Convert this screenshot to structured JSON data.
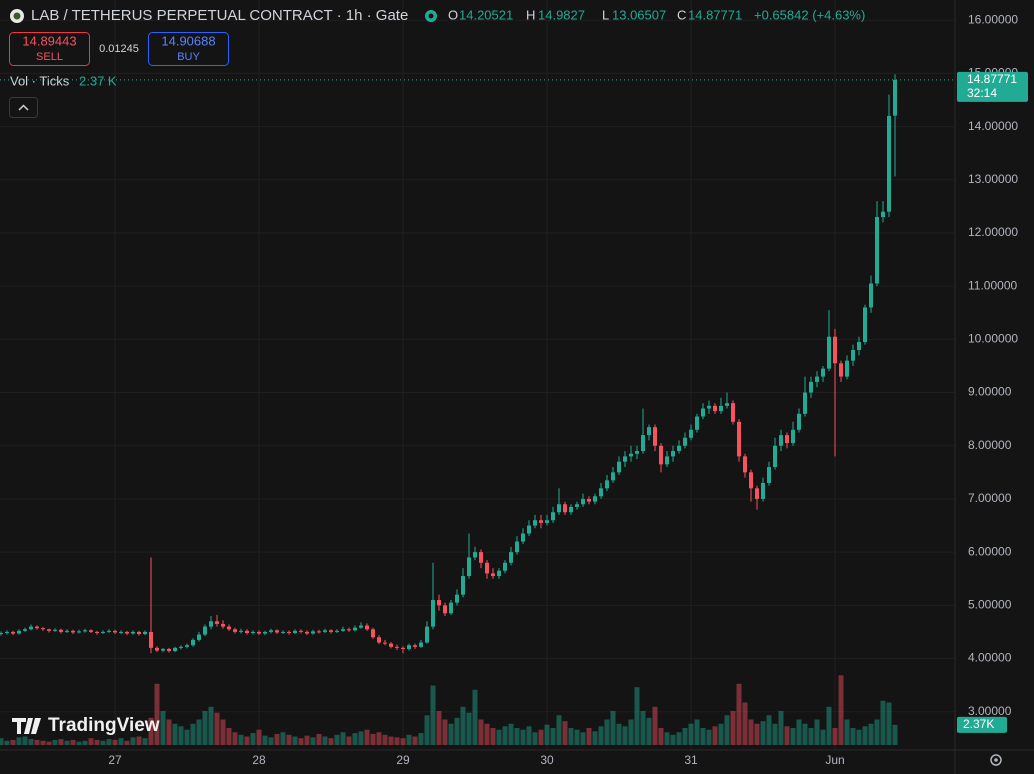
{
  "header": {
    "title": "LAB / TETHERUS PERPETUAL CONTRACT · 1h · Gate",
    "ohlc_labels": [
      "O",
      "H",
      "L",
      "C"
    ],
    "change_label": "+0.65842 (+4.63%)"
  },
  "trade": {
    "sell_price": "14.89443",
    "sell_label": "SELL",
    "spread": "0.01245",
    "buy_price": "14.90688",
    "buy_label": "BUY"
  },
  "volume_legend": {
    "label": "Vol · Ticks",
    "value_label": "2.37 K",
    "axis_label": "2.37K"
  },
  "countdown": "32:14",
  "branding": "TradingView",
  "chart_data": {
    "type": "candlestick",
    "up_color": "#22ab94",
    "down_color": "#f7525f",
    "grid": true,
    "ylim": [
      2.28,
      16.38
    ],
    "yticks": [
      {
        "value": 3,
        "label": "3.00000"
      },
      {
        "value": 4,
        "label": "4.00000"
      },
      {
        "value": 5,
        "label": "5.00000"
      },
      {
        "value": 6,
        "label": "6.00000"
      },
      {
        "value": 7,
        "label": "7.00000"
      },
      {
        "value": 8,
        "label": "8.00000"
      },
      {
        "value": 9,
        "label": "9.00000"
      },
      {
        "value": 10,
        "label": "10.00000"
      },
      {
        "value": 11,
        "label": "11.00000"
      },
      {
        "value": 12,
        "label": "12.00000"
      },
      {
        "value": 13,
        "label": "13.00000"
      },
      {
        "value": 14,
        "label": "14.00000"
      },
      {
        "value": 15,
        "label": "15.00000"
      },
      {
        "value": 16,
        "label": "16.00000"
      }
    ],
    "x": [
      null,
      null,
      null,
      null,
      null,
      null,
      null,
      null,
      null,
      null,
      null,
      null,
      null,
      null,
      null,
      null,
      null,
      null,
      null,
      "27",
      null,
      null,
      null,
      null,
      null,
      null,
      null,
      null,
      null,
      null,
      null,
      null,
      null,
      null,
      null,
      null,
      null,
      null,
      null,
      null,
      null,
      null,
      null,
      "28",
      null,
      null,
      null,
      null,
      null,
      null,
      null,
      null,
      null,
      null,
      null,
      null,
      null,
      null,
      null,
      null,
      null,
      null,
      null,
      null,
      null,
      null,
      null,
      "29",
      null,
      null,
      null,
      null,
      null,
      null,
      null,
      null,
      null,
      null,
      null,
      null,
      null,
      null,
      null,
      null,
      null,
      null,
      null,
      null,
      null,
      null,
      null,
      "30",
      null,
      null,
      null,
      null,
      null,
      null,
      null,
      null,
      null,
      null,
      null,
      null,
      null,
      null,
      null,
      null,
      null,
      null,
      null,
      null,
      null,
      null,
      null,
      "31",
      null,
      null,
      null,
      null,
      null,
      null,
      null,
      null,
      null,
      null,
      null,
      null,
      null,
      null,
      null,
      null,
      null,
      null,
      null,
      null,
      null,
      null,
      null,
      "Jun",
      null,
      null,
      null,
      null,
      null,
      null,
      null,
      null,
      null,
      null
    ],
    "open": [
      4.46,
      4.48,
      4.5,
      4.47,
      4.52,
      4.55,
      4.6,
      4.57,
      4.55,
      4.52,
      4.54,
      4.5,
      4.52,
      4.49,
      4.51,
      4.53,
      4.5,
      4.48,
      4.5,
      4.52,
      4.49,
      4.5,
      4.47,
      4.5,
      4.46,
      4.5,
      4.2,
      4.15,
      4.18,
      4.14,
      4.2,
      4.22,
      4.25,
      4.35,
      4.45,
      4.6,
      4.7,
      4.65,
      4.6,
      4.55,
      4.5,
      4.52,
      4.48,
      4.5,
      4.47,
      4.5,
      4.53,
      4.49,
      4.5,
      4.48,
      4.52,
      4.5,
      4.47,
      4.51,
      4.5,
      4.53,
      4.5,
      4.52,
      4.55,
      4.53,
      4.58,
      4.62,
      4.55,
      4.4,
      4.3,
      4.28,
      4.22,
      4.2,
      4.18,
      4.25,
      4.22,
      4.3,
      4.6,
      5.1,
      5.0,
      4.85,
      5.05,
      5.2,
      5.55,
      5.9,
      6.0,
      5.8,
      5.6,
      5.55,
      5.65,
      5.8,
      6.0,
      6.2,
      6.35,
      6.5,
      6.6,
      6.55,
      6.6,
      6.75,
      6.9,
      6.75,
      6.85,
      6.9,
      7.0,
      6.95,
      7.05,
      7.2,
      7.35,
      7.5,
      7.7,
      7.8,
      7.85,
      7.9,
      8.2,
      8.35,
      8.0,
      7.65,
      7.8,
      7.9,
      8.0,
      8.15,
      8.3,
      8.55,
      8.7,
      8.75,
      8.65,
      8.75,
      8.8,
      8.45,
      7.8,
      7.5,
      7.2,
      7.0,
      7.3,
      7.6,
      8.0,
      8.2,
      8.05,
      8.3,
      8.6,
      9.0,
      9.2,
      9.3,
      9.45,
      10.05,
      9.55,
      9.3,
      9.6,
      9.8,
      9.95,
      10.6,
      11.05,
      12.3,
      12.4,
      14.20521
    ],
    "high": [
      4.51,
      4.53,
      4.52,
      4.55,
      4.58,
      4.64,
      4.62,
      4.59,
      4.56,
      4.57,
      4.56,
      4.55,
      4.54,
      4.54,
      4.56,
      4.55,
      4.52,
      4.53,
      4.55,
      4.54,
      4.53,
      4.52,
      4.53,
      4.52,
      4.53,
      5.9,
      4.23,
      4.2,
      4.2,
      4.22,
      4.25,
      4.28,
      4.38,
      4.5,
      4.64,
      4.8,
      4.82,
      4.72,
      4.64,
      4.58,
      4.56,
      4.55,
      4.53,
      4.53,
      4.52,
      4.56,
      4.55,
      4.53,
      4.53,
      4.55,
      4.55,
      4.53,
      4.54,
      4.54,
      4.56,
      4.55,
      4.55,
      4.6,
      4.58,
      4.62,
      4.68,
      4.66,
      4.58,
      4.44,
      4.35,
      4.31,
      4.26,
      4.23,
      4.28,
      4.28,
      4.35,
      4.7,
      5.8,
      5.2,
      5.05,
      5.1,
      5.3,
      5.7,
      6.35,
      6.1,
      6.05,
      5.85,
      5.7,
      5.7,
      5.85,
      6.1,
      6.3,
      6.45,
      6.6,
      6.7,
      6.7,
      6.7,
      6.85,
      7.2,
      6.95,
      6.9,
      6.95,
      7.1,
      7.05,
      7.1,
      7.3,
      7.45,
      7.6,
      7.8,
      7.9,
      8.0,
      8.0,
      8.7,
      8.4,
      8.4,
      8.05,
      7.9,
      8.0,
      8.1,
      8.25,
      8.4,
      8.6,
      8.8,
      8.85,
      8.8,
      8.9,
      9.0,
      8.85,
      8.5,
      7.85,
      7.55,
      7.25,
      7.4,
      7.7,
      8.15,
      8.3,
      8.25,
      8.45,
      8.7,
      9.3,
      9.3,
      9.4,
      9.5,
      10.55,
      10.2,
      9.6,
      9.7,
      9.9,
      10.05,
      10.65,
      11.2,
      12.6,
      12.6,
      14.6,
      14.9827
    ],
    "low": [
      4.43,
      4.45,
      4.44,
      4.45,
      4.5,
      4.53,
      4.54,
      4.52,
      4.49,
      4.5,
      4.47,
      4.48,
      4.46,
      4.47,
      4.49,
      4.48,
      4.45,
      4.46,
      4.48,
      4.46,
      4.46,
      4.44,
      4.45,
      4.43,
      4.44,
      4.1,
      4.12,
      4.12,
      4.11,
      4.12,
      4.17,
      4.19,
      4.22,
      4.32,
      4.42,
      4.55,
      4.6,
      4.56,
      4.52,
      4.47,
      4.47,
      4.45,
      4.45,
      4.44,
      4.44,
      4.47,
      4.46,
      4.46,
      4.45,
      4.46,
      4.47,
      4.44,
      4.45,
      4.47,
      4.48,
      4.47,
      4.48,
      4.5,
      4.5,
      4.51,
      4.56,
      4.52,
      4.37,
      4.27,
      4.25,
      4.19,
      4.16,
      4.1,
      4.15,
      4.18,
      4.2,
      4.28,
      4.55,
      4.9,
      4.8,
      4.82,
      5.0,
      5.15,
      5.5,
      5.85,
      5.7,
      5.5,
      5.5,
      5.5,
      5.6,
      5.75,
      5.95,
      6.15,
      6.3,
      6.45,
      6.45,
      6.5,
      6.55,
      6.7,
      6.7,
      6.7,
      6.8,
      6.85,
      6.9,
      6.9,
      7.0,
      7.15,
      7.3,
      7.45,
      7.6,
      7.7,
      7.75,
      7.85,
      8.1,
      7.9,
      7.5,
      7.6,
      7.7,
      7.85,
      7.95,
      8.1,
      8.25,
      8.5,
      8.6,
      8.6,
      8.6,
      8.7,
      8.4,
      7.7,
      7.4,
      6.95,
      6.8,
      6.95,
      7.25,
      7.55,
      7.9,
      7.95,
      8.0,
      8.25,
      8.55,
      8.9,
      9.1,
      9.2,
      9.4,
      7.8,
      9.2,
      9.25,
      9.5,
      9.7,
      9.9,
      10.5,
      11.0,
      12.2,
      12.3,
      13.06507
    ],
    "close": [
      4.48,
      4.5,
      4.47,
      4.52,
      4.55,
      4.6,
      4.57,
      4.55,
      4.52,
      4.54,
      4.5,
      4.52,
      4.49,
      4.51,
      4.53,
      4.5,
      4.48,
      4.5,
      4.52,
      4.49,
      4.5,
      4.47,
      4.5,
      4.46,
      4.5,
      4.2,
      4.15,
      4.18,
      4.14,
      4.2,
      4.22,
      4.25,
      4.35,
      4.45,
      4.6,
      4.7,
      4.65,
      4.6,
      4.55,
      4.5,
      4.52,
      4.48,
      4.5,
      4.47,
      4.5,
      4.53,
      4.49,
      4.5,
      4.48,
      4.52,
      4.5,
      4.47,
      4.51,
      4.5,
      4.53,
      4.5,
      4.52,
      4.55,
      4.53,
      4.58,
      4.62,
      4.55,
      4.4,
      4.3,
      4.28,
      4.22,
      4.2,
      4.18,
      4.25,
      4.22,
      4.3,
      4.6,
      5.1,
      5.0,
      4.85,
      5.05,
      5.2,
      5.55,
      5.9,
      6.0,
      5.8,
      5.6,
      5.55,
      5.65,
      5.8,
      6.0,
      6.2,
      6.35,
      6.5,
      6.6,
      6.55,
      6.6,
      6.75,
      6.9,
      6.75,
      6.85,
      6.9,
      7.0,
      6.95,
      7.05,
      7.2,
      7.35,
      7.5,
      7.7,
      7.8,
      7.85,
      7.9,
      8.2,
      8.35,
      8.0,
      7.65,
      7.8,
      7.9,
      8.0,
      8.15,
      8.3,
      8.55,
      8.7,
      8.75,
      8.65,
      8.75,
      8.8,
      8.45,
      7.8,
      7.5,
      7.2,
      7.0,
      7.3,
      7.6,
      8.0,
      8.2,
      8.05,
      8.3,
      8.6,
      9.0,
      9.2,
      9.3,
      9.45,
      10.05,
      9.55,
      9.3,
      9.6,
      9.8,
      9.95,
      10.6,
      11.05,
      12.3,
      12.4,
      14.2,
      14.87771
    ],
    "volume": [
      0.8,
      0.5,
      0.6,
      0.9,
      1.0,
      0.7,
      0.6,
      0.5,
      0.4,
      0.6,
      0.7,
      0.5,
      0.6,
      0.4,
      0.5,
      0.8,
      0.6,
      0.5,
      0.7,
      0.6,
      0.8,
      0.5,
      0.9,
      1.0,
      0.8,
      3.2,
      7.2,
      4.0,
      3.0,
      2.5,
      2.2,
      1.8,
      2.5,
      3.0,
      4.0,
      4.5,
      3.8,
      3.0,
      2.0,
      1.5,
      1.2,
      1.0,
      1.4,
      1.8,
      1.1,
      0.9,
      1.3,
      1.5,
      1.2,
      1.0,
      0.8,
      1.1,
      0.9,
      1.3,
      1.0,
      0.8,
      1.2,
      1.5,
      1.0,
      1.4,
      1.6,
      1.8,
      1.3,
      1.5,
      1.2,
      1.0,
      0.9,
      0.8,
      1.2,
      1.0,
      1.4,
      3.5,
      7.0,
      4.0,
      3.0,
      2.5,
      3.2,
      4.5,
      3.8,
      6.5,
      3.0,
      2.5,
      2.0,
      1.8,
      2.2,
      2.5,
      2.0,
      1.8,
      2.2,
      1.5,
      1.8,
      2.4,
      2.0,
      3.5,
      2.8,
      2.0,
      1.8,
      1.5,
      2.0,
      1.6,
      2.2,
      3.0,
      4.0,
      2.5,
      2.2,
      3.0,
      6.8,
      4.0,
      3.2,
      4.5,
      2.0,
      1.5,
      1.2,
      1.5,
      2.0,
      2.5,
      3.0,
      2.0,
      1.8,
      2.2,
      2.5,
      3.5,
      4.0,
      7.2,
      5.0,
      3.0,
      2.5,
      2.8,
      3.5,
      2.5,
      4.0,
      2.2,
      2.0,
      3.0,
      2.5,
      2.0,
      3.0,
      1.8,
      4.5,
      2.0,
      8.2,
      3.0,
      2.0,
      1.8,
      2.2,
      2.5,
      3.0,
      5.2,
      5.0,
      2.37
    ]
  }
}
